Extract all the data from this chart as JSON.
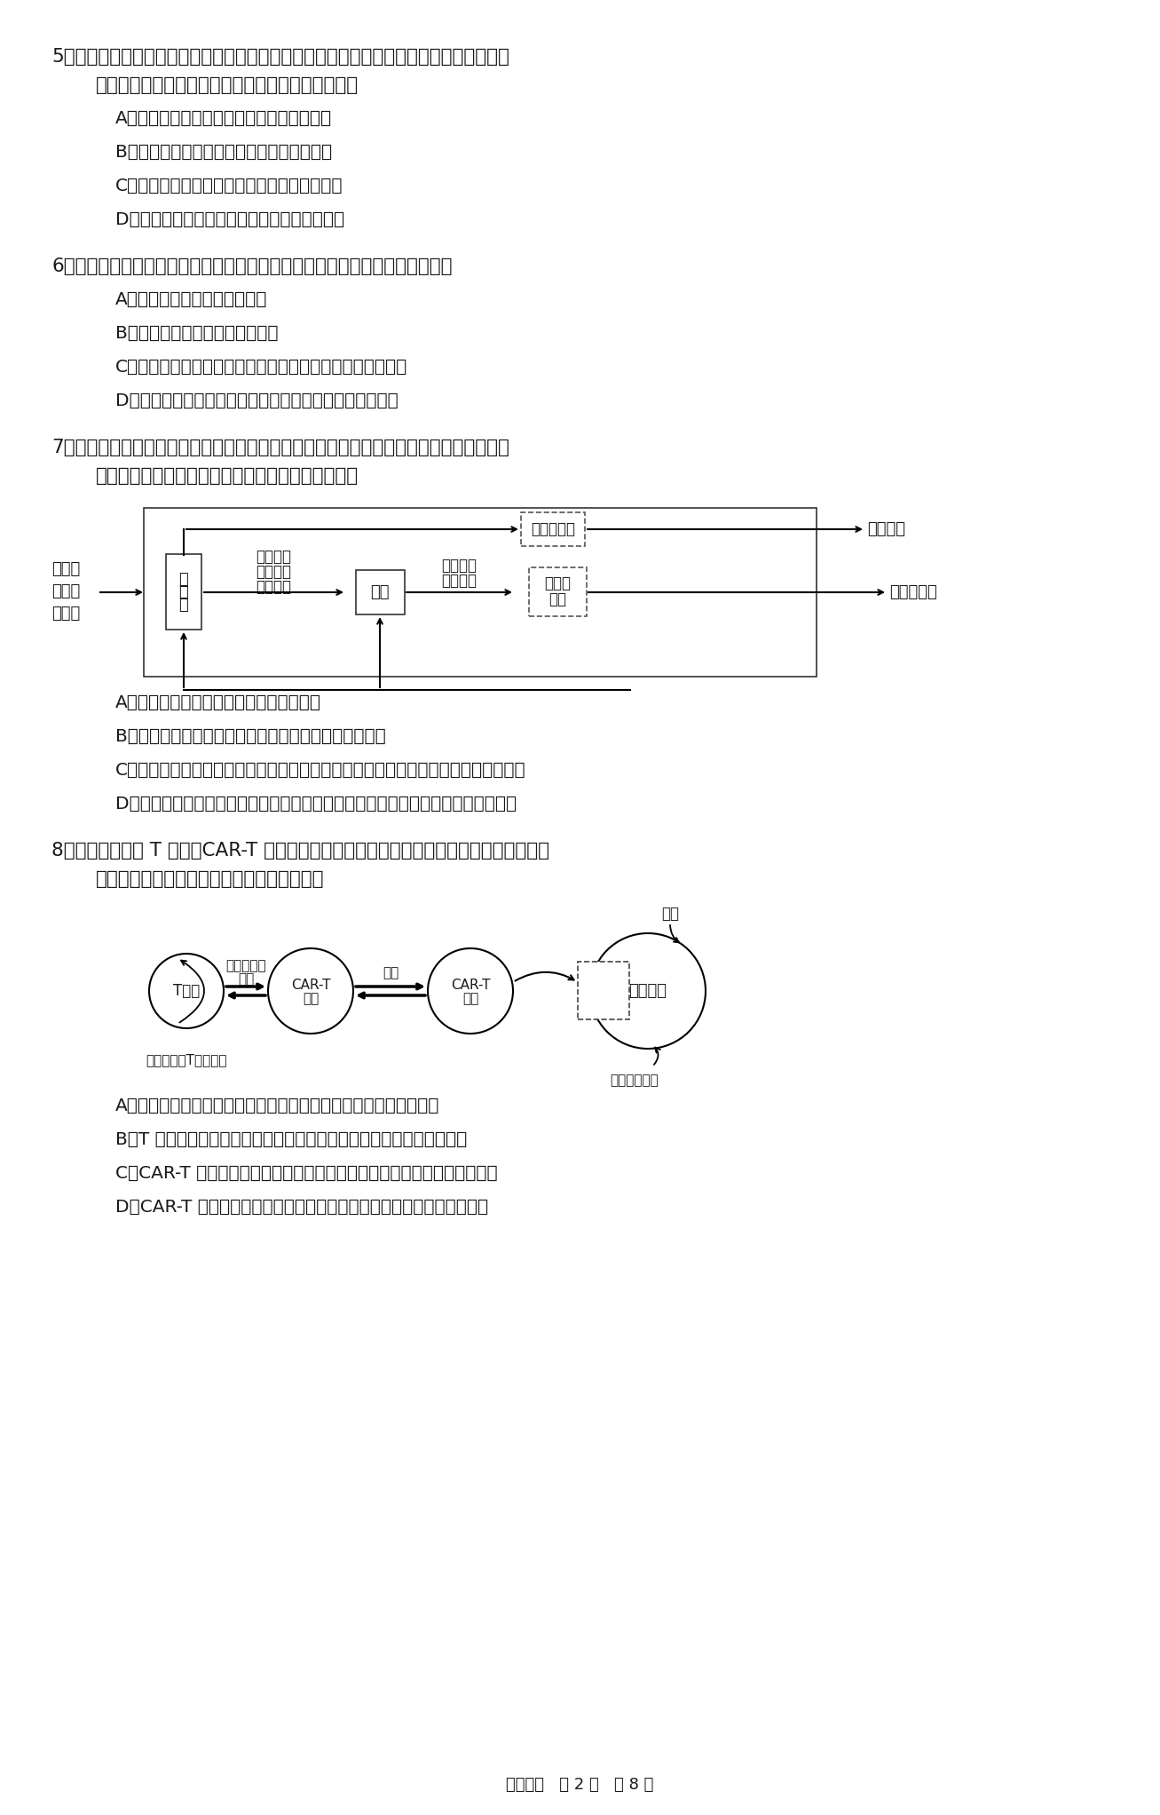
{
  "bg_color": "#ffffff",
  "text_color": "#1a1a1a",
  "page_footer": "生物试题   第 2 页   共 8 页",
  "q5_stem1": "5．烟草受到蛾幼虫攻击时会释放植物信息素，白天吸引蛾幼虫的天敌进行捕食，夜间驱赶",
  "q5_stem2": "雌蛾，防止其在烟草叶片上产卵。下列分析错误的是",
  "q5_opts": [
    "A．该过程中烟草释放的信息素属于化学信息",
    "B．三种生物凭借该信息相互联系形成食物链",
    "C．烟草和蛾幼虫天敌的种间关系属于原始合作",
    "D．该信息有利于维持烟草地的生态平衡与稳定"
  ],
  "q6_stem": "6．寒冷环境中，人体体温仍可维持在正常范围。此调节过程中，不会发生的是",
  "q6_opts": [
    "A．甲状腺激素的分泌持续增加",
    "B．肌肉和肝脏等器官的产热增多",
    "C．下丘脑体温调节中枢通过有关神经，引起皮肤血流量减少",
    "D．交感神经兴奋使胰高血糖素分泌增加，有利于能量供应"
  ],
  "q7_stem1": "7．人体受到低血糖或危险等刺激时，神经系统和内分泌系统会作出相应反应，其中肾上腺",
  "q7_stem2": "发挥了重要作用，调节机制如图。相关叙述错误的是",
  "q7_opts": [
    "A．糖皮质激素的分泌具有分级调节的特点",
    "B．下丘脑和垂体某些细胞具有糖皮质激素的特异性受体",
    "C．长期大剂量使用糖皮质激素类药物，停药后导致体内糖皮质激素分泌量超过正常值",
    "D．当机体遭遇紧急情况时，肾上腺素升高，使机体处于反应机敏、高度警觉的状态"
  ],
  "q8_stem1": "8．嵌合抗原受体 T 细胞（CAR-T 细胞）疗法在治疗血液系统恶性肿瘤具有极大的优势，其",
  "q8_stem2": "治疗过程如下图所示，下列相关叙述正确的是",
  "q8_opts": [
    "A．肿瘤坏死因子和溶菌酶都属于免疫活性物质，都由免疫细胞产生",
    "B．T 细胞和树突状细胞、巨噬细胞都具有摄取、处理、呈递抗原的功能",
    "C．CAR-T 细胞疗法既能有效杀伤肿瘤细胞又不会引起机体的免疫排斥反应",
    "D．CAR-T 细胞特异性识别肿瘤细胞并使其裂解死亡的过程属于细胞坏死"
  ]
}
